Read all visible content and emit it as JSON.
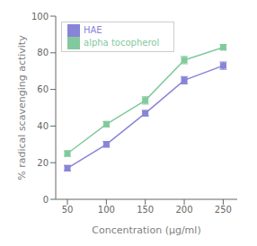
{
  "chart_data": {
    "type": "line",
    "x": [
      50,
      100,
      150,
      200,
      250
    ],
    "series": [
      {
        "name": "HAE",
        "color": "#8884d8",
        "marker": "square",
        "values": [
          17,
          30,
          47,
          65,
          73
        ],
        "yerr": [
          1.5,
          1.5,
          1.5,
          2.0,
          2.0
        ]
      },
      {
        "name": "alpha tocopherol",
        "color": "#82ca9d",
        "marker": "square",
        "values": [
          25,
          41,
          54,
          76,
          83
        ],
        "yerr": [
          1.5,
          1.5,
          2.0,
          2.0,
          1.5
        ]
      }
    ],
    "xlabel": "Concentration (μg/ml)",
    "ylabel": "% radical scavenging activity",
    "xlim": [
      35,
      268
    ],
    "ylim": [
      0,
      100
    ],
    "xticks": [
      50,
      100,
      150,
      200,
      250
    ],
    "yticks": [
      0,
      20,
      40,
      60,
      80,
      100
    ],
    "grid": false,
    "legend": "upper left"
  }
}
